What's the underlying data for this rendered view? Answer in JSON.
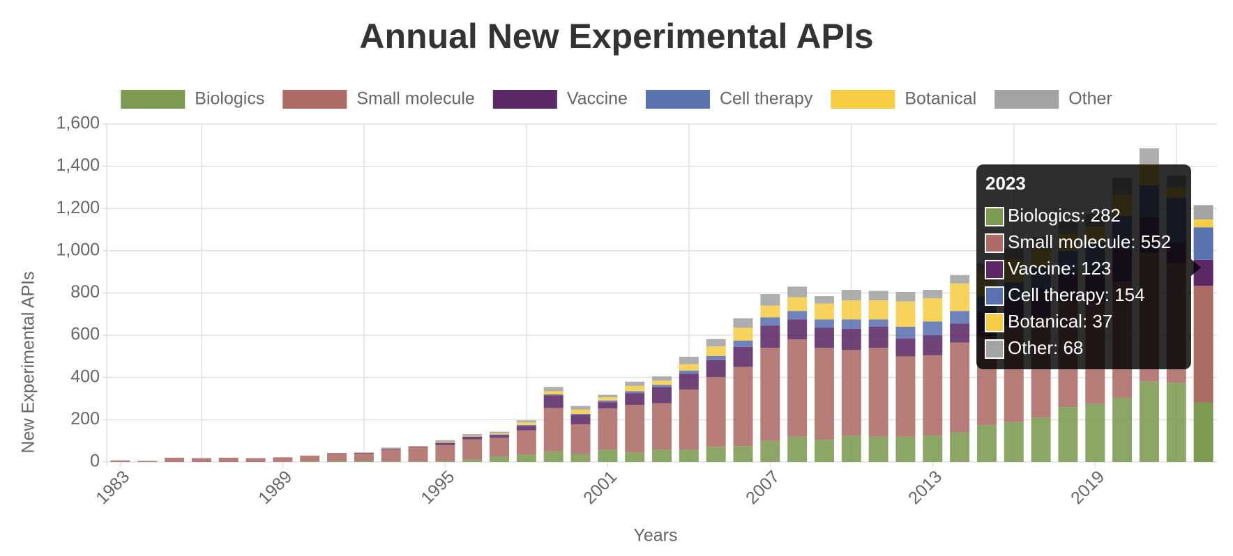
{
  "chart_data": {
    "type": "stacked_bar",
    "title": "Annual New Experimental APIs",
    "x_label": "Years",
    "y_label": "New Experimental APIs",
    "categories": [
      "1983",
      null,
      null,
      null,
      null,
      null,
      "1989",
      null,
      null,
      null,
      null,
      null,
      "1995",
      null,
      null,
      null,
      null,
      null,
      "2001",
      null,
      null,
      null,
      null,
      null,
      "2007",
      null,
      null,
      null,
      null,
      null,
      "2013",
      null,
      null,
      null,
      null,
      null,
      "2019",
      null,
      null,
      null,
      null
    ],
    "series": [
      {
        "name": "Biologics",
        "color": "#7c9b50",
        "values": [
          0,
          0,
          0,
          0,
          0,
          0,
          0,
          3,
          5,
          5,
          3,
          3,
          5,
          12,
          25,
          35,
          50,
          38,
          58,
          45,
          58,
          58,
          72,
          75,
          100,
          120,
          105,
          125,
          120,
          120,
          125,
          140,
          175,
          190,
          210,
          260,
          275,
          305,
          380,
          375,
          282
        ]
      },
      {
        "name": "Small molecule",
        "color": "#ad6b66",
        "values": [
          6,
          5,
          20,
          18,
          20,
          18,
          22,
          27,
          35,
          35,
          57,
          68,
          75,
          95,
          90,
          115,
          205,
          140,
          195,
          225,
          220,
          285,
          330,
          375,
          440,
          460,
          435,
          405,
          420,
          380,
          380,
          425,
          420,
          450,
          470,
          500,
          480,
          550,
          610,
          565,
          552
        ]
      },
      {
        "name": "Vaccine",
        "color": "#5b2865",
        "values": [
          0,
          0,
          0,
          0,
          0,
          0,
          0,
          0,
          2,
          3,
          3,
          2,
          10,
          12,
          12,
          20,
          60,
          45,
          30,
          55,
          75,
          75,
          80,
          95,
          105,
          95,
          95,
          100,
          100,
          85,
          95,
          90,
          120,
          130,
          140,
          130,
          150,
          150,
          170,
          100,
          123
        ]
      },
      {
        "name": "Cell therapy",
        "color": "#5b72b0",
        "values": [
          0,
          0,
          0,
          0,
          0,
          0,
          0,
          0,
          0,
          0,
          0,
          0,
          2,
          2,
          3,
          5,
          5,
          5,
          8,
          10,
          12,
          15,
          20,
          30,
          40,
          40,
          40,
          45,
          35,
          55,
          65,
          60,
          70,
          80,
          100,
          110,
          130,
          160,
          150,
          210,
          154
        ]
      },
      {
        "name": "Botanical",
        "color": "#f7cd46",
        "values": [
          0,
          0,
          0,
          0,
          0,
          0,
          0,
          0,
          0,
          0,
          0,
          0,
          3,
          3,
          5,
          12,
          15,
          20,
          15,
          25,
          20,
          30,
          45,
          60,
          55,
          65,
          75,
          90,
          90,
          120,
          110,
          130,
          110,
          110,
          90,
          80,
          80,
          100,
          100,
          50,
          37
        ]
      },
      {
        "name": "Other",
        "color": "#a3a3a3",
        "values": [
          2,
          0,
          0,
          0,
          0,
          0,
          0,
          0,
          0,
          2,
          5,
          2,
          8,
          8,
          8,
          10,
          20,
          17,
          12,
          20,
          20,
          35,
          35,
          45,
          55,
          50,
          35,
          50,
          45,
          45,
          40,
          40,
          45,
          50,
          55,
          60,
          60,
          80,
          75,
          55,
          68
        ]
      }
    ],
    "ylim": [
      0,
      1600
    ],
    "yticks": [
      0,
      200,
      400,
      600,
      800,
      {
        "value": 1000,
        "label": "1,000"
      },
      {
        "value": 1200,
        "label": "1,200"
      },
      {
        "value": 1400,
        "label": "1,400"
      },
      {
        "value": 1600,
        "label": "1,600"
      }
    ],
    "grid": true,
    "legend": "top",
    "tooltip": {
      "title": "2023",
      "items": [
        "Biologics: 282",
        "Small molecule: 552",
        "Vaccine: 123",
        "Cell therapy: 154",
        "Botanical: 37",
        "Other: 68"
      ]
    }
  }
}
